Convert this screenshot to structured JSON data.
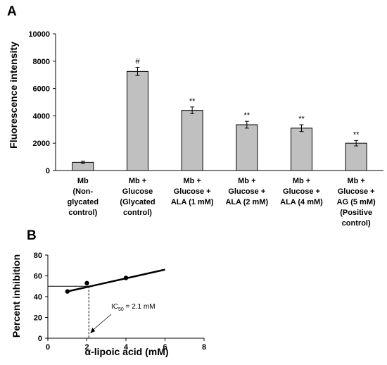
{
  "chart_data": [
    {
      "panel": "A",
      "type": "bar",
      "ylabel": "Fluorescence intensity",
      "ylim": [
        0,
        10000
      ],
      "yticks": [
        0,
        2000,
        4000,
        6000,
        8000,
        10000
      ],
      "categories": [
        [
          "Mb",
          "(Non-",
          "glycated",
          "control)"
        ],
        [
          "Mb +",
          "Glucose",
          "(Glycated",
          "control)"
        ],
        [
          "Mb +",
          "Glucose +",
          "ALA (1 mM)"
        ],
        [
          "Mb +",
          "Glucose +",
          "ALA (2 mM)"
        ],
        [
          "Mb +",
          "Glucose +",
          "ALA (4 mM)"
        ],
        [
          "Mb +",
          "Glucose +",
          "AG (5 mM)",
          "(Positive",
          "control)"
        ]
      ],
      "values": [
        600,
        7250,
        4400,
        3350,
        3100,
        2000
      ],
      "errors": [
        80,
        300,
        250,
        250,
        250,
        200
      ],
      "significance": [
        "",
        "#",
        "**",
        "**",
        "**",
        "**"
      ],
      "bar_color": "#c0c0c0"
    },
    {
      "panel": "B",
      "type": "scatter",
      "xlabel": "α-lipoic acid (mM)",
      "ylabel": "Percent inhibition",
      "xlim": [
        0,
        8
      ],
      "ylim": [
        0,
        80
      ],
      "xticks": [
        0,
        2,
        4,
        6,
        8
      ],
      "yticks": [
        0,
        20,
        40,
        60,
        80
      ],
      "points": [
        {
          "x": 1,
          "y": 45
        },
        {
          "x": 2,
          "y": 53
        },
        {
          "x": 4,
          "y": 58
        }
      ],
      "trendline": {
        "x": [
          1,
          6
        ],
        "y": [
          45,
          66
        ]
      },
      "ic50": {
        "value": 2.1,
        "y": 50,
        "label_prefix": "IC",
        "label_sub": "50",
        "label_suffix": " = 2.1 mM"
      }
    }
  ]
}
